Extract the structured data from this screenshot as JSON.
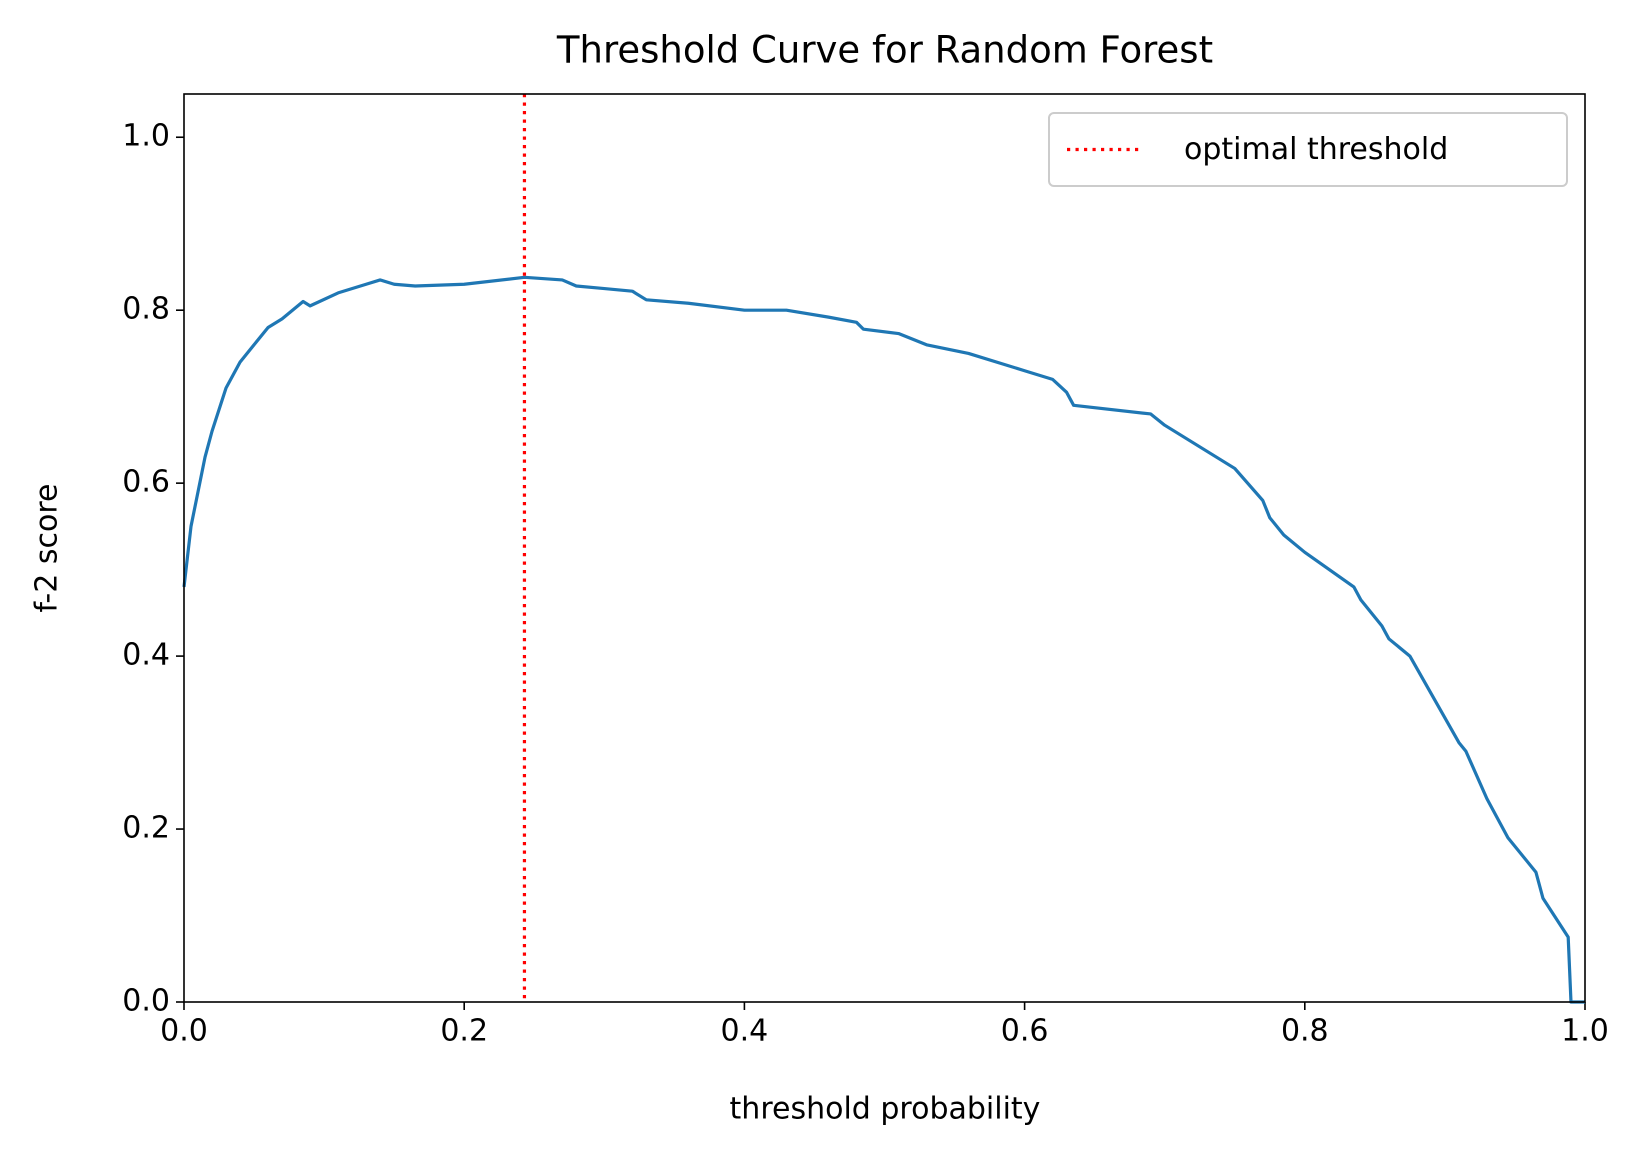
{
  "chart_data": {
    "type": "line",
    "title": "Threshold Curve for Random Forest",
    "x_label": "threshold probability",
    "y_label": "f-2 score",
    "x": [
      0,
      0.005,
      0.01,
      0.015,
      0.02,
      0.03,
      0.04,
      0.05,
      0.06,
      0.07,
      0.085,
      0.09,
      0.11,
      0.13,
      0.14,
      0.15,
      0.165,
      0.2,
      0.243,
      0.27,
      0.28,
      0.3,
      0.32,
      0.33,
      0.36,
      0.4,
      0.43,
      0.46,
      0.48,
      0.485,
      0.51,
      0.53,
      0.56,
      0.6,
      0.62,
      0.63,
      0.635,
      0.69,
      0.7,
      0.75,
      0.77,
      0.775,
      0.785,
      0.8,
      0.835,
      0.84,
      0.855,
      0.86,
      0.875,
      0.91,
      0.915,
      0.93,
      0.945,
      0.95,
      0.965,
      0.97,
      0.988,
      0.99,
      1.0
    ],
    "values": [
      0.48,
      0.55,
      0.59,
      0.63,
      0.66,
      0.71,
      0.74,
      0.76,
      0.78,
      0.79,
      0.81,
      0.805,
      0.82,
      0.83,
      0.835,
      0.83,
      0.828,
      0.83,
      0.838,
      0.835,
      0.828,
      0.825,
      0.822,
      0.812,
      0.808,
      0.8,
      0.8,
      0.792,
      0.786,
      0.778,
      0.773,
      0.76,
      0.75,
      0.73,
      0.72,
      0.705,
      0.69,
      0.68,
      0.667,
      0.617,
      0.58,
      0.56,
      0.54,
      0.52,
      0.48,
      0.465,
      0.435,
      0.42,
      0.4,
      0.3,
      0.29,
      0.235,
      0.19,
      0.18,
      0.15,
      0.12,
      0.075,
      0.0,
      0.0
    ],
    "color": "#1f77b4",
    "threshold": {
      "name": "optimal threshold",
      "color": "#ff0000",
      "x": 0.243
    },
    "legend": "upper right",
    "xlim": [
      0,
      1
    ],
    "ylim": [
      0,
      1.05
    ],
    "xticks": [
      {
        "value": 0,
        "label": "0.0"
      },
      0.2,
      0.4,
      0.6,
      0.8,
      {
        "value": 1,
        "label": "1.0"
      }
    ],
    "yticks": [
      {
        "value": 0,
        "label": "0.0"
      },
      0.2,
      0.4,
      0.6,
      0.8,
      {
        "value": 1,
        "label": "1.0"
      }
    ]
  }
}
